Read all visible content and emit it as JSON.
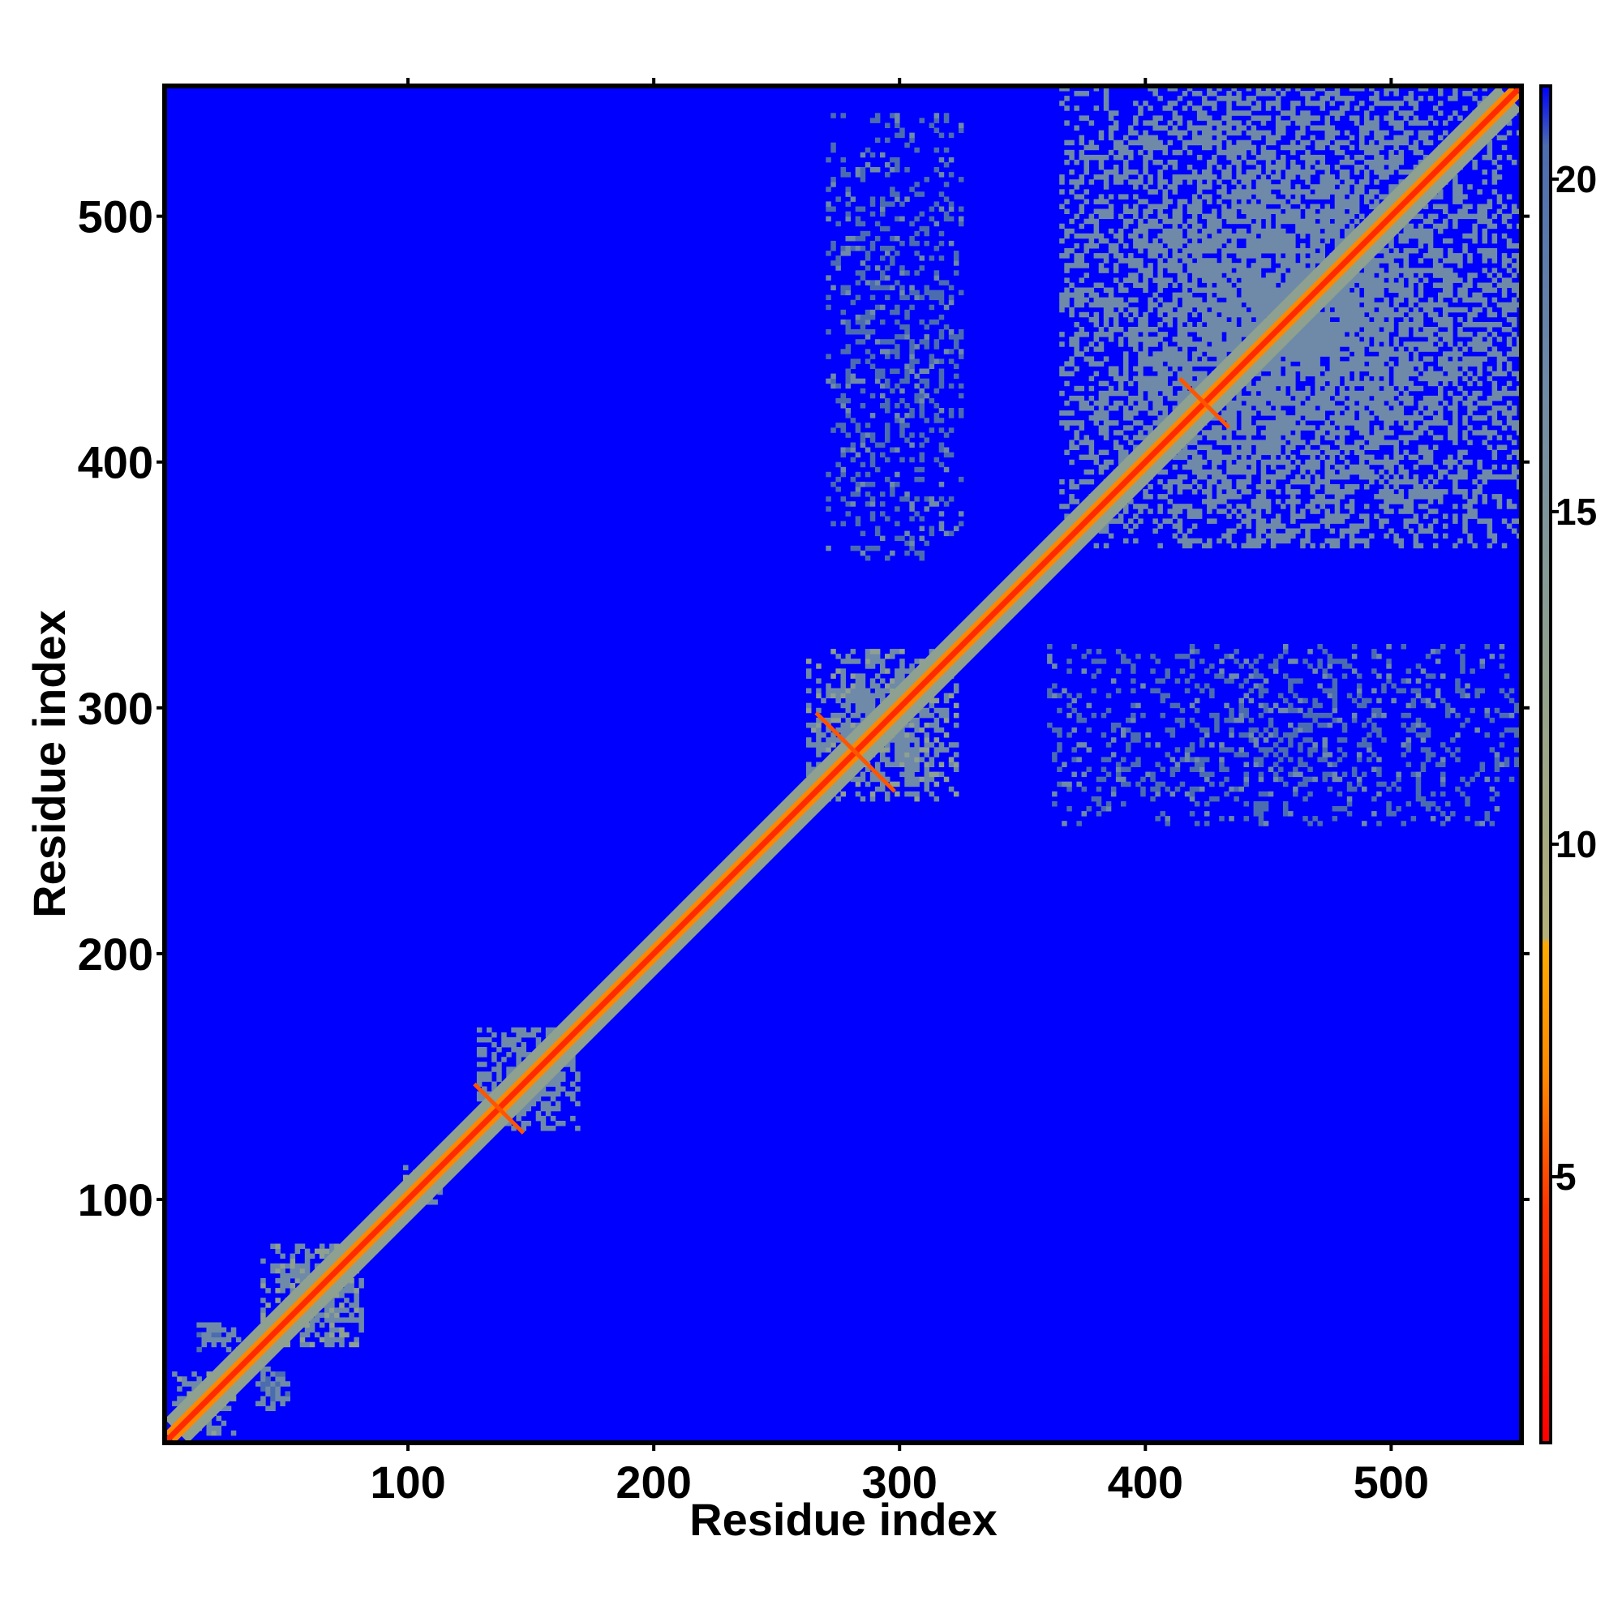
{
  "chart_data": {
    "type": "heatmap",
    "title": "",
    "xlabel": "Residue index",
    "ylabel": "Residue index",
    "xlim": [
      1,
      553
    ],
    "ylim": [
      1,
      553
    ],
    "xticks": [
      100,
      200,
      300,
      400,
      500
    ],
    "yticks": [
      100,
      200,
      300,
      400,
      500
    ],
    "colorbar": {
      "min": 1,
      "max": 21.4,
      "ticks": [
        5,
        10,
        15,
        20
      ],
      "stops": [
        {
          "value": 1,
          "color": "#ff0000"
        },
        {
          "value": 4.5,
          "color": "#ff3300"
        },
        {
          "value": 6.5,
          "color": "#ff8800"
        },
        {
          "value": 8.5,
          "color": "#ffaa00"
        },
        {
          "value": 8.6,
          "color": "#b4b07a"
        },
        {
          "value": 13,
          "color": "#8ea090"
        },
        {
          "value": 17,
          "color": "#6f8aa8"
        },
        {
          "value": 20.5,
          "color": "#4c6cb0"
        },
        {
          "value": 21.4,
          "color": "#0000ff"
        }
      ]
    },
    "background_color": "#0000ff",
    "diagonal_color": "#ff2a00",
    "contact_color": "#6f92b0",
    "diagonal": {
      "start": 1,
      "end": 553,
      "band_width": 6
    },
    "contact_blocks": [
      {
        "x": [
          4,
          28
        ],
        "y": [
          4,
          28
        ],
        "level": 14
      },
      {
        "x": [
          40,
          80
        ],
        "y": [
          40,
          80
        ],
        "level": 14
      },
      {
        "x": [
          14,
          30
        ],
        "y": [
          38,
          50
        ],
        "level": 16
      },
      {
        "x": [
          38,
          50
        ],
        "y": [
          14,
          30
        ],
        "level": 16
      },
      {
        "x": [
          98,
          112
        ],
        "y": [
          98,
          112
        ],
        "level": 14
      },
      {
        "x": [
          128,
          168
        ],
        "y": [
          128,
          168
        ],
        "level": 15
      },
      {
        "x": [
          262,
          322
        ],
        "y": [
          262,
          322
        ],
        "level": 14
      },
      {
        "x": [
          270,
          325
        ],
        "y": [
          360,
          540
        ],
        "level": 18
      },
      {
        "x": [
          360,
          552
        ],
        "y": [
          252,
          325
        ],
        "level": 18
      },
      {
        "x": [
          365,
          552
        ],
        "y": [
          365,
          552
        ],
        "level": 15
      }
    ],
    "cross_contacts": [
      {
        "center": [
          137,
          137
        ],
        "half_length": 10
      },
      {
        "center": [
          282,
          282
        ],
        "half_length": 16
      },
      {
        "center": [
          424,
          424
        ],
        "half_length": 10
      }
    ]
  }
}
